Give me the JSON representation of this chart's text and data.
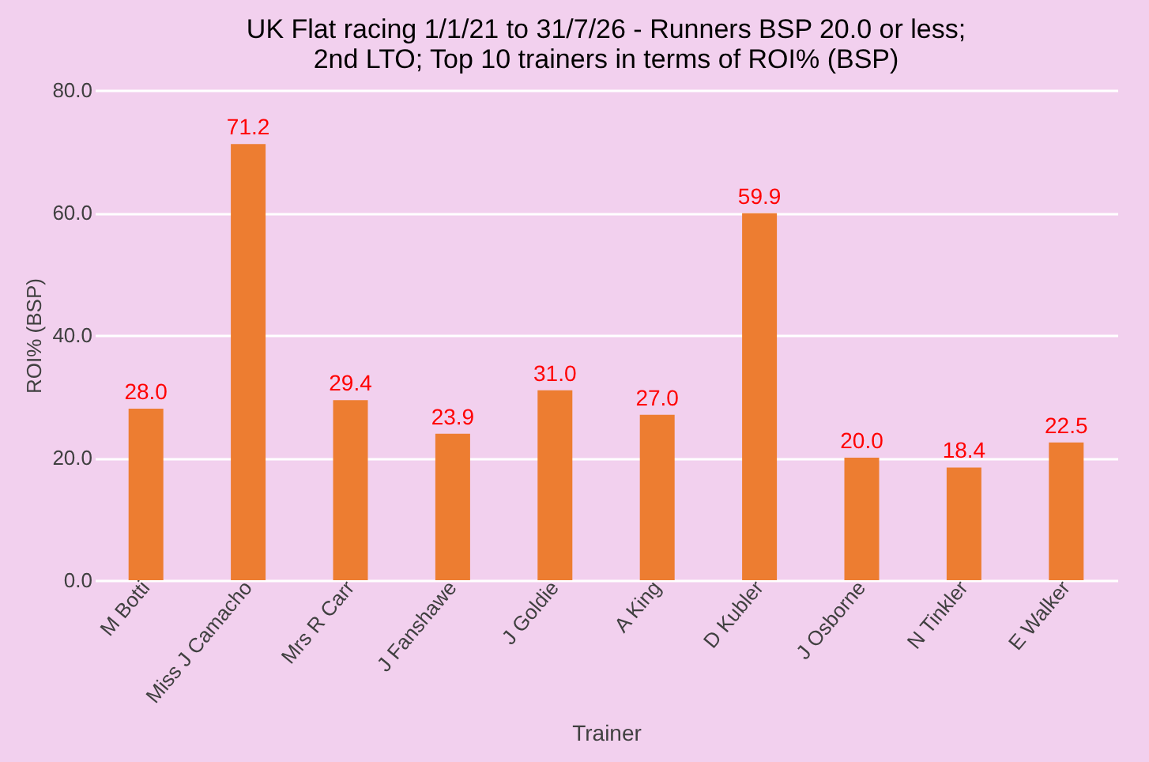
{
  "chart_data": {
    "type": "bar",
    "title": [
      "UK Flat racing 1/1/21 to 31/7/26 - Runners BSP 20.0 or less;",
      "2nd LTO; Top 10 trainers in terms of ROI% (BSP)"
    ],
    "xlabel": "Trainer",
    "ylabel": "ROI% (BSP)",
    "categories": [
      "M Botti",
      "Miss J Camacho",
      "Mrs R Carr",
      "J Fanshawe",
      "J Goldie",
      "A King",
      "D Kubler",
      "J Osborne",
      "N Tinkler",
      "E Walker"
    ],
    "values": [
      28.0,
      71.2,
      29.4,
      23.9,
      31.0,
      27.0,
      59.9,
      20.0,
      18.4,
      22.5
    ],
    "color": "#ed7d31",
    "ylim": [
      0,
      80
    ],
    "yticks": [
      {
        "value": 0,
        "label": "0.0"
      },
      {
        "value": 20,
        "label": "20.0"
      },
      {
        "value": 40,
        "label": "40.0"
      },
      {
        "value": 60,
        "label": "60.0"
      },
      {
        "value": 80,
        "label": "80.0"
      }
    ],
    "value_labels": [
      "28.0",
      "71.2",
      "29.4",
      "23.9",
      "31.0",
      "27.0",
      "59.9",
      "20.0",
      "18.4",
      "22.5"
    ],
    "grid": "y"
  }
}
